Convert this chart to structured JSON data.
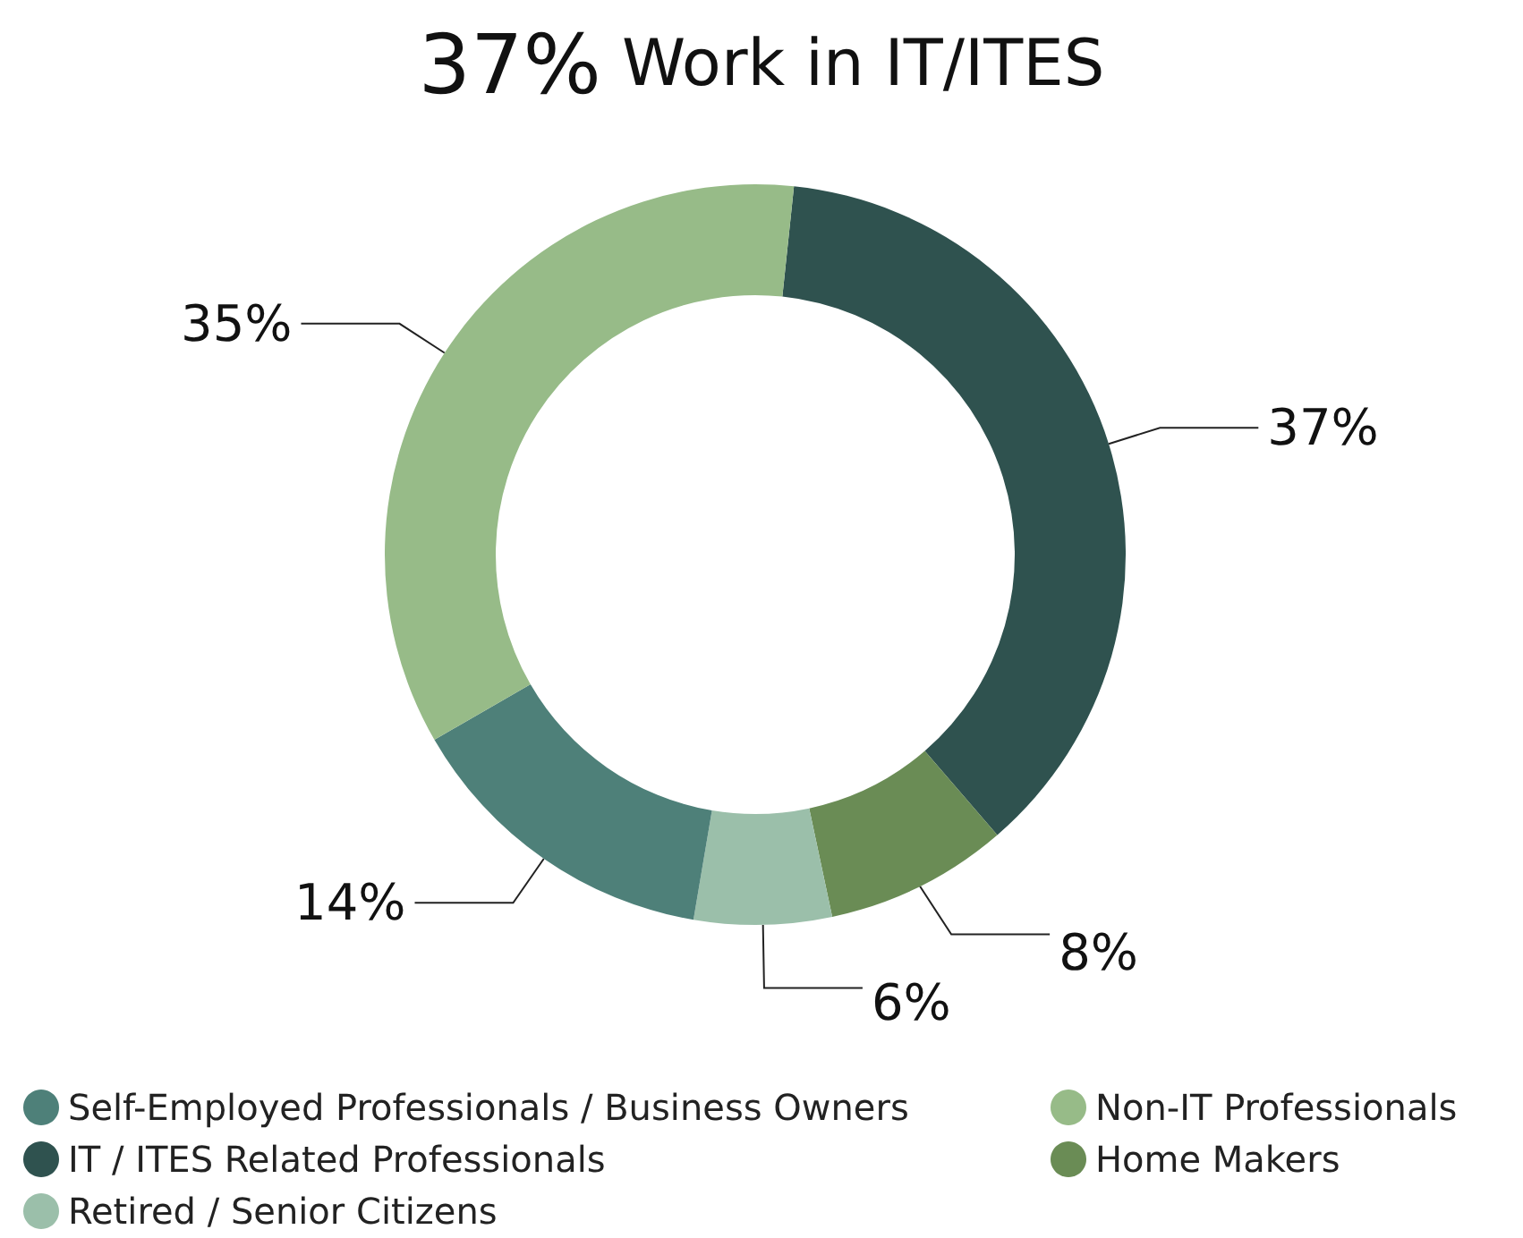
{
  "chart_data": {
    "type": "donut",
    "title": "37% Work in IT/ITES",
    "categories": [
      "IT / ITES Related Professionals",
      "Home Makers",
      "Retired / Senior Citizens",
      "Self-Employed Professionals / Business Owners",
      "Non-IT Professionals"
    ],
    "values": [
      37,
      8,
      6,
      14,
      35
    ],
    "colors": [
      "#2f524f",
      "#6a8c55",
      "#9bbfaa",
      "#4e8079",
      "#97bb88"
    ],
    "value_labels": [
      "37%",
      "8%",
      "6%",
      "14%",
      "35%"
    ],
    "legend": "bottom"
  }
}
